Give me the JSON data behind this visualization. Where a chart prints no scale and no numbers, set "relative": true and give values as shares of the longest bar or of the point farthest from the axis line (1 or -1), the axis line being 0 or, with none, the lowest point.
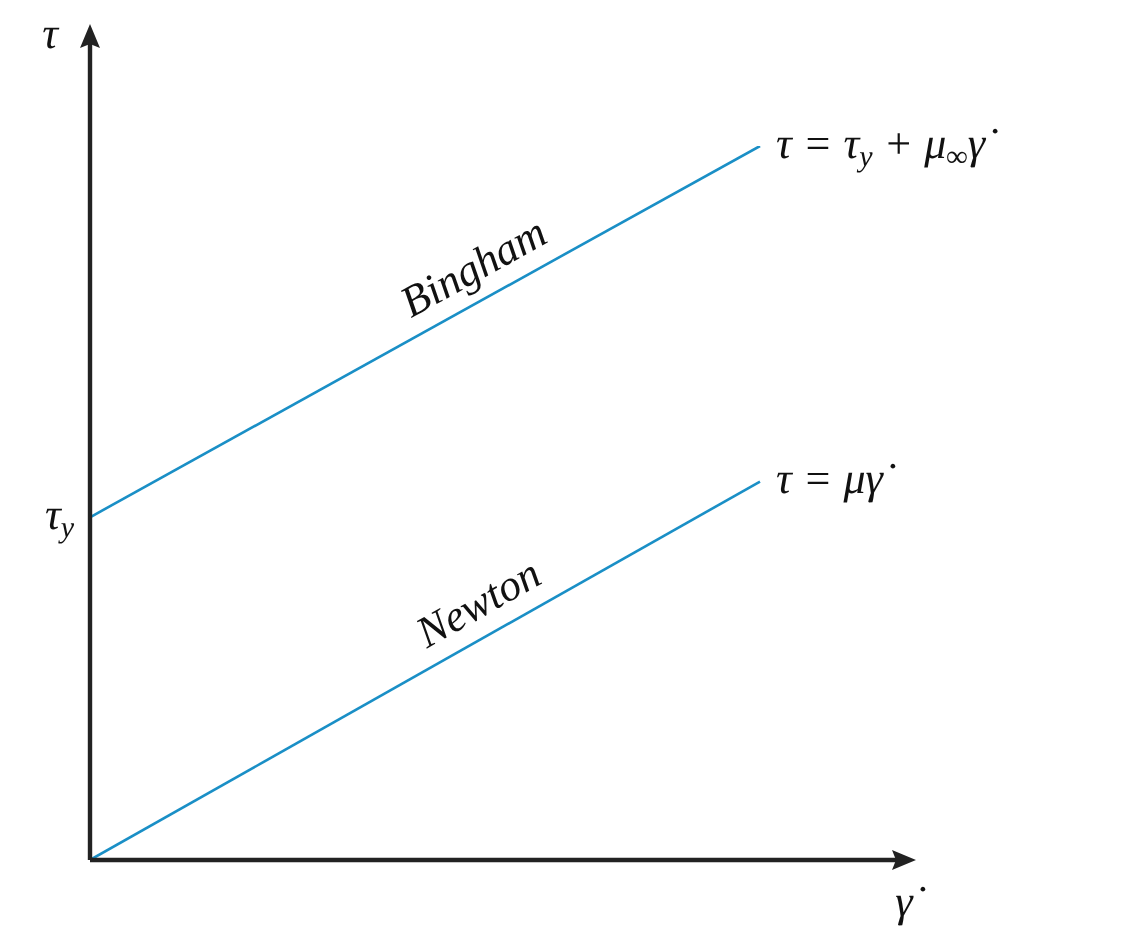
{
  "chart_data": {
    "type": "line",
    "relative": true,
    "xlabel": "γ̇",
    "ylabel": "τ",
    "categories": [
      null,
      null
    ],
    "series": [
      {
        "color": "#1a8fc6",
        "values": [
          0.48,
          1
        ]
      },
      {
        "color": "#1a8fc6",
        "values": [
          0,
          0.53
        ]
      }
    ],
    "annotations": [
      "τ = τ$_{y}$ + μ$_{∞}$γ̇",
      "τ = μγ̇",
      "τ$_{y}$",
      {
        "text": "Bingham",
        "y": 0.79
      },
      {
        "text": "Newton",
        "y": 0.32
      }
    ],
    "legend": false
  }
}
